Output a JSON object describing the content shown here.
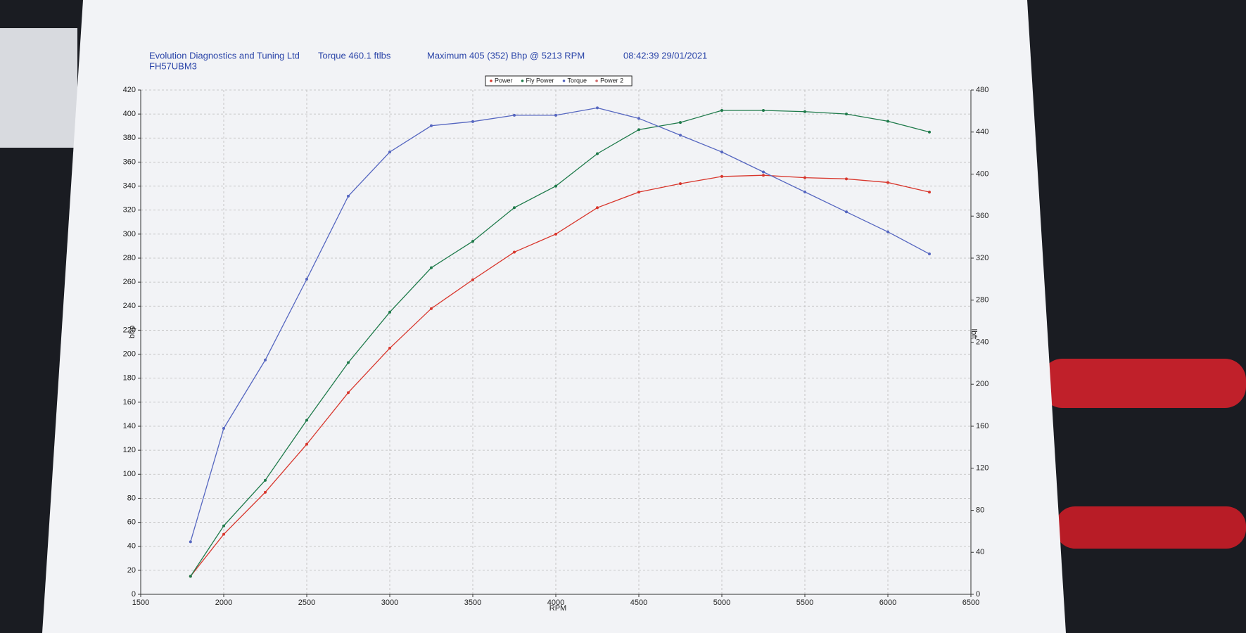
{
  "chart_data": {
    "type": "line",
    "header": [
      "Evolution Diagnostics and Tuning Ltd",
      "Torque 460.1 ftlbs",
      "Maximum 405 (352) Bhp @ 5213 RPM",
      "08:42:39 29/01/2021"
    ],
    "subtitle": "FH57UBM3",
    "x_label": "RPM",
    "y_label": "bhp",
    "y2_label": "lbft",
    "x": [
      1800,
      2000,
      2250,
      2500,
      2750,
      3000,
      3250,
      3500,
      3750,
      4000,
      4250,
      4500,
      4750,
      5000,
      5250,
      5500,
      5750,
      6000,
      6250
    ],
    "series": [
      {
        "name": "Power",
        "color": "#d8362c",
        "values": [
          15,
          50,
          85,
          125,
          168,
          205,
          238,
          262,
          285,
          300,
          322,
          335,
          342,
          348,
          349,
          347,
          346,
          343,
          335
        ]
      },
      {
        "name": "Fly Power",
        "color": "#1e7a4a",
        "values": [
          15,
          57,
          95,
          145,
          193,
          235,
          272,
          294,
          322,
          340,
          367,
          387,
          393,
          403,
          403,
          402,
          400,
          394,
          385
        ]
      },
      {
        "name": "Torque",
        "color": "#5566c0",
        "axis": "y2",
        "values": [
          50,
          158,
          223,
          300,
          379,
          421,
          446,
          450,
          456,
          456,
          463,
          453,
          437,
          421,
          402,
          383,
          364,
          345,
          324
        ]
      },
      {
        "name": "Power 2",
        "color": "#d06a6a",
        "values": [
          null,
          null,
          null,
          null,
          null,
          null,
          null,
          null,
          null,
          null,
          null,
          null,
          null,
          null,
          null,
          null,
          null,
          null,
          null
        ]
      }
    ],
    "xlim": [
      1500,
      6500
    ],
    "xticks": [
      1500,
      2000,
      2500,
      3000,
      3500,
      4000,
      4500,
      5000,
      5500,
      6000,
      6500
    ],
    "ylim": [
      0,
      420
    ],
    "yticks": [
      0,
      20,
      40,
      60,
      80,
      100,
      120,
      140,
      160,
      180,
      200,
      220,
      240,
      260,
      280,
      300,
      320,
      340,
      360,
      380,
      400,
      420
    ],
    "y2lim": [
      0,
      480
    ],
    "y2ticks": [
      0,
      40,
      80,
      120,
      160,
      200,
      240,
      280,
      320,
      360,
      400,
      440,
      480
    ],
    "grid": true,
    "legend": "top"
  }
}
